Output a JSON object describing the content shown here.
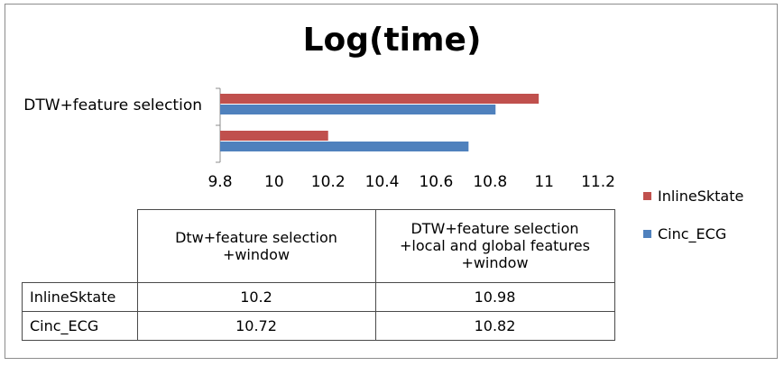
{
  "chart_data": {
    "type": "bar",
    "orientation": "horizontal",
    "title": "Log(time)",
    "categories": [
      "Dtw+feature selection +window",
      "DTW+feature selection +local and global features +window"
    ],
    "category_axis_labels": [
      "",
      "DTW+feature selection"
    ],
    "series": [
      {
        "name": "InlineSktate",
        "values": [
          10.2,
          10.98
        ],
        "color": "#c0504d"
      },
      {
        "name": "Cinc_ECG",
        "values": [
          10.72,
          10.82
        ],
        "color": "#4f81bd"
      }
    ],
    "xlim": [
      9.8,
      11.2
    ],
    "ticks": [
      "9.8",
      "10",
      "10.2",
      "10.4",
      "10.6",
      "10.8",
      "11",
      "11.2"
    ],
    "grid": false,
    "legend_position": "right"
  },
  "table": {
    "headers": [
      "Dtw+feature selection +window",
      "DTW+feature selection +local and global features +window"
    ],
    "rows": [
      {
        "label": "InlineSktate",
        "values": [
          "10.2",
          "10.98"
        ]
      },
      {
        "label": "Cinc_ECG",
        "values": [
          "10.72",
          "10.82"
        ]
      }
    ]
  }
}
